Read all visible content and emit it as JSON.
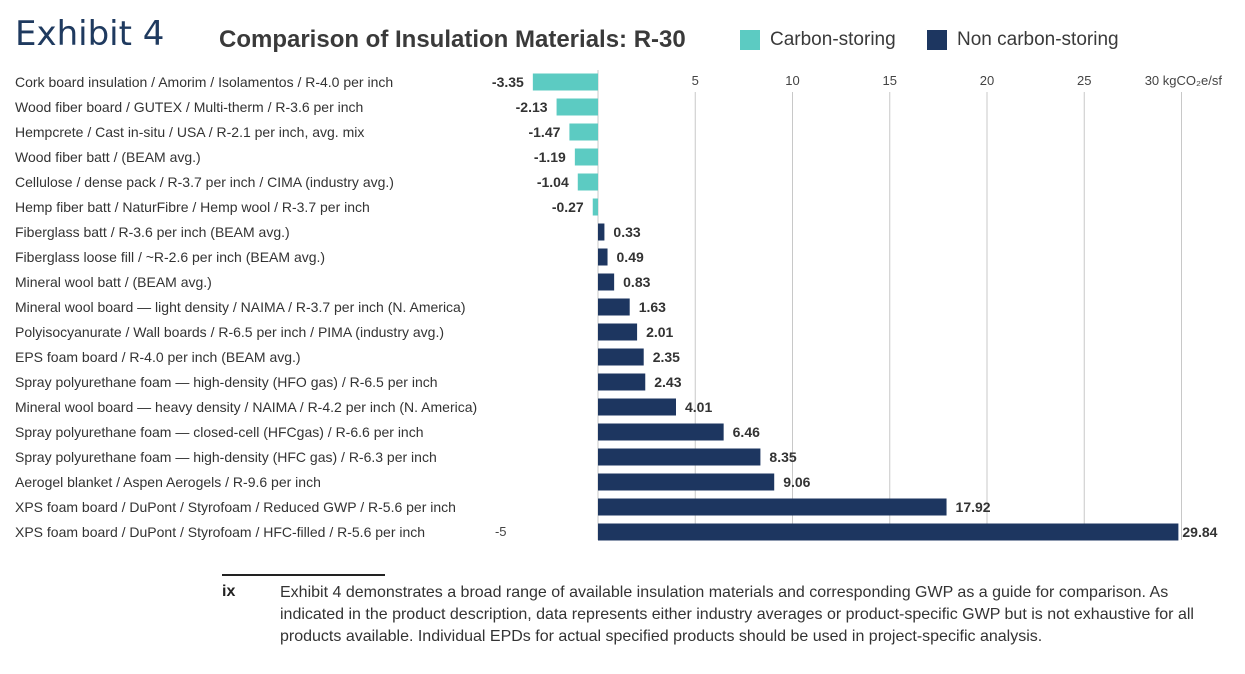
{
  "exhibit_label": "Exhibit 4",
  "chart_data": {
    "type": "bar",
    "orientation": "horizontal",
    "title": "Comparison of Insulation Materials: R-30",
    "unit": "kgCO₂e/sf",
    "xlim": [
      -5,
      30
    ],
    "xticks": [
      -5,
      5,
      10,
      15,
      20,
      25,
      30
    ],
    "tick_labels": [
      "-5",
      "5",
      "10",
      "15",
      "20",
      "25",
      "30 kgCO₂e/sf"
    ],
    "grid": "vertical",
    "legend": [
      {
        "name": "Carbon-storing",
        "color": "#5ccbc2"
      },
      {
        "name": "Non carbon-storing",
        "color": "#1d3660"
      }
    ],
    "categories": [
      "Cork board insulation / Amorim / Isolamentos / R-4.0 per inch",
      "Wood fiber board / GUTEX / Multi-therm / R-3.6 per inch",
      "Hempcrete / Cast in-situ / USA / R-2.1 per inch, avg. mix",
      "Wood fiber batt / (BEAM avg.)",
      "Cellulose / dense pack / R-3.7 per inch / CIMA (industry avg.)",
      "Hemp fiber batt / NaturFibre / Hemp wool / R-3.7 per inch",
      "Fiberglass batt / R-3.6 per inch (BEAM avg.)",
      "Fiberglass loose fill / ~R-2.6 per inch (BEAM avg.)",
      "Mineral wool batt / (BEAM avg.)",
      "Mineral wool board — light density / NAIMA / R-3.7 per inch (N. America)",
      "Polyisocyanurate / Wall boards / R-6.5 per inch / PIMA (industry avg.)",
      "EPS foam board / R-4.0 per inch (BEAM avg.)",
      "Spray polyurethane foam — high-density (HFO gas) / R-6.5 per inch",
      "Mineral wool board — heavy density / NAIMA / R-4.2 per inch (N. America)",
      "Spray polyurethane foam — closed-cell (HFCgas) / R-6.6 per inch",
      "Spray polyurethane foam — high-density (HFC gas) / R-6.3 per inch",
      "Aerogel blanket / Aspen Aerogels / R-9.6 per inch",
      "XPS foam board / DuPont / Styrofoam / Reduced GWP / R-5.6 per inch",
      "XPS foam board / DuPont / Styrofoam / HFC-filled / R-5.6 per inch"
    ],
    "values": [
      -3.35,
      -2.13,
      -1.47,
      -1.19,
      -1.04,
      -0.27,
      0.33,
      0.49,
      0.83,
      1.63,
      2.01,
      2.35,
      2.43,
      4.01,
      6.46,
      8.35,
      9.06,
      17.92,
      29.84
    ],
    "value_labels": [
      "-3.35",
      "-2.13",
      "-1.47",
      "-1.19",
      "-1.04",
      "-0.27",
      "0.33",
      "0.49",
      "0.83",
      "1.63",
      "2.01",
      "2.35",
      "2.43",
      "4.01",
      "6.46",
      "8.35",
      "9.06",
      "17.92",
      "29.84"
    ]
  },
  "footnote": {
    "number": "ix",
    "text": "Exhibit 4 demonstrates a broad range of available insulation materials and corresponding GWP as a guide for comparison. As indicated in the product description, data represents either industry averages or product-specific GWP but is not exhaustive for all products available. Individual EPDs for actual specified products should be used in project-specific analysis."
  }
}
